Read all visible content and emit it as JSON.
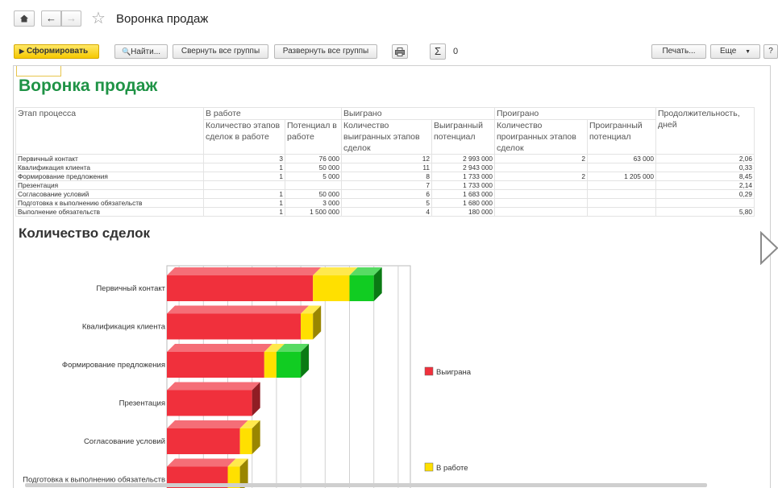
{
  "window": {
    "title": "Воронка продаж"
  },
  "toolbar": {
    "generate": "Сформировать",
    "find": "Найти...",
    "collapse": "Свернуть все группы",
    "expand": "Развернуть все группы",
    "sum_value": "0",
    "print": "Печать...",
    "more": "Еще",
    "help": "?"
  },
  "report": {
    "title": "Воронка продаж",
    "headers": {
      "stage": "Этап процесса",
      "in_work": "В работе",
      "won": "Выиграно",
      "lost": "Проиграно",
      "duration": "Продолжительность, дней",
      "iw_count": "Количество этапов сделок в работе",
      "iw_pot": "Потенциал в работе",
      "won_count": "Количество выигранных этапов сделок",
      "won_pot": "Выигранный потенциал",
      "lost_count": "Количество проигранных этапов сделок",
      "lost_pot": "Проигранный потенциал"
    },
    "rows": [
      {
        "stage": "Первичный контакт",
        "iw_count": "3",
        "iw_pot": "76 000",
        "won_count": "12",
        "won_pot": "2 993 000",
        "lost_count": "2",
        "lost_pot": "63 000",
        "duration": "2,06"
      },
      {
        "stage": "Квалификация клиента",
        "iw_count": "1",
        "iw_pot": "50 000",
        "won_count": "11",
        "won_pot": "2 943 000",
        "lost_count": "",
        "lost_pot": "",
        "duration": "0,33"
      },
      {
        "stage": "Формирование предложения",
        "iw_count": "1",
        "iw_pot": "5 000",
        "won_count": "8",
        "won_pot": "1 733 000",
        "lost_count": "2",
        "lost_pot": "1 205 000",
        "duration": "8,45"
      },
      {
        "stage": "Презентация",
        "iw_count": "",
        "iw_pot": "",
        "won_count": "7",
        "won_pot": "1 733 000",
        "lost_count": "",
        "lost_pot": "",
        "duration": "2,14"
      },
      {
        "stage": "Согласование условий",
        "iw_count": "1",
        "iw_pot": "50 000",
        "won_count": "6",
        "won_pot": "1 683 000",
        "lost_count": "",
        "lost_pot": "",
        "duration": "0,29"
      },
      {
        "stage": "Подготовка к выполнению обязательств",
        "iw_count": "1",
        "iw_pot": "3 000",
        "won_count": "5",
        "won_pot": "1 680 000",
        "lost_count": "",
        "lost_pot": "",
        "duration": ""
      },
      {
        "stage": "Выполнение обязательств",
        "iw_count": "1",
        "iw_pot": "1 500 000",
        "won_count": "4",
        "won_pot": "180 000",
        "lost_count": "",
        "lost_pot": "",
        "duration": "5,80"
      }
    ]
  },
  "chart_data": {
    "type": "bar",
    "title": "Количество сделок",
    "categories": [
      "Первичный контакт",
      "Квалификация клиента",
      "Формирование предложения",
      "Презентация",
      "Согласование условий",
      "Подготовка к выполнению обязательств"
    ],
    "series": [
      {
        "name": "Выиграна",
        "color": "#f0303c",
        "values": [
          12,
          11,
          8,
          7,
          6,
          5
        ]
      },
      {
        "name": "В работе",
        "color": "#ffe000",
        "values": [
          3,
          1,
          1,
          0,
          1,
          1
        ]
      },
      {
        "name": "",
        "color": "#11cc22",
        "values": [
          2,
          0,
          2,
          0,
          0,
          0
        ]
      }
    ],
    "orientation": "horizontal-stacked-3d",
    "legend_position": "right"
  },
  "colors": {
    "accent_green": "#1f9346",
    "generate_yellow": "#f5c800"
  }
}
